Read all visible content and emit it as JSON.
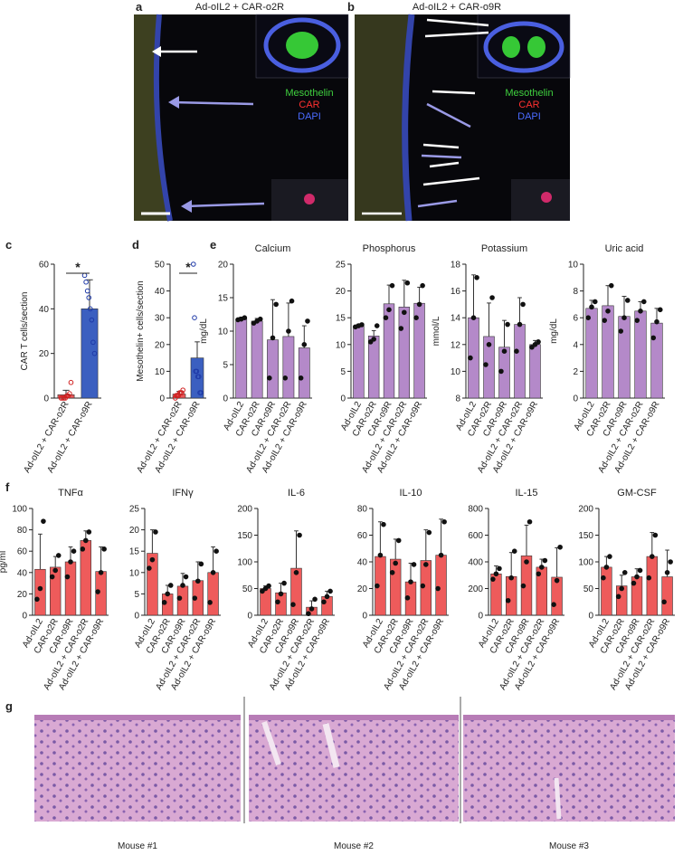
{
  "panel_labels": [
    "a",
    "b",
    "c",
    "d",
    "e",
    "f",
    "g"
  ],
  "images": [
    {
      "title": "Ad-oIL2 + CAR-o2R",
      "legend": [
        {
          "name": "Mesothelin",
          "color": "#3fd13f"
        },
        {
          "name": "CAR",
          "color": "#ff3030"
        },
        {
          "name": "DAPI",
          "color": "#4a6bff"
        }
      ]
    },
    {
      "title": "Ad-oIL2 + CAR-o9R",
      "legend": [
        {
          "name": "Mesothelin",
          "color": "#3fd13f"
        },
        {
          "name": "CAR",
          "color": "#ff3030"
        },
        {
          "name": "DAPI",
          "color": "#4a6bff"
        }
      ]
    }
  ],
  "mouse_labels": [
    "Mouse #1",
    "Mouse #2",
    "Mouse #3"
  ],
  "chart_data": [
    {
      "type": "bar",
      "ylabel": "CAR T cells/section",
      "categories": [
        "Ad-oIL2 + CAR-o2R",
        "Ad-oIL2 + CAR-o9R"
      ],
      "values": [
        1.5,
        40
      ],
      "errors": [
        2,
        13
      ],
      "colors": [
        "#e8585a",
        "#3b5fc0"
      ],
      "point_colors": [
        "#d02020",
        "#1f3aa8"
      ],
      "points": [
        [
          0,
          0,
          0,
          0,
          1,
          1,
          2,
          7
        ],
        [
          55,
          52,
          48,
          45,
          40,
          35,
          25,
          20
        ]
      ],
      "annotation": "*",
      "ylim": [
        0,
        60
      ],
      "yticks": [
        0,
        20,
        40,
        60
      ]
    },
    {
      "type": "bar",
      "ylabel": "Mesothelin+ cells/section",
      "categories": [
        "Ad-oIL2 + CAR-o2R",
        "Ad-oIL2 + CAR-o9R"
      ],
      "values": [
        1.5,
        15
      ],
      "errors": [
        1,
        6
      ],
      "colors": [
        "#e8585a",
        "#3b5fc0"
      ],
      "point_colors": [
        "#d02020",
        "#1f3aa8"
      ],
      "points": [
        [
          0,
          1,
          1,
          1,
          2,
          2,
          2,
          3
        ],
        [
          50,
          30,
          10,
          10,
          8,
          8,
          2,
          2
        ]
      ],
      "annotation": "*",
      "ylim": [
        0,
        50
      ],
      "yticks": [
        0,
        10,
        20,
        30,
        40,
        50
      ]
    },
    {
      "type": "bar",
      "title": "Calcium",
      "ylabel": "mg/dL",
      "color": "#b489c9",
      "categories": [
        "Ad-oIL2",
        "CAR-o2R",
        "CAR-o9R",
        "Ad-oIL2 + CAR-o2R",
        "Ad-oIL2 + CAR-o9R"
      ],
      "values": [
        11.8,
        11.5,
        8.7,
        9.2,
        7.5
      ],
      "errors": [
        0.3,
        0.4,
        6,
        5,
        3.3
      ],
      "points": [
        [
          11.7,
          11.8,
          12
        ],
        [
          11.2,
          11.5,
          11.8
        ],
        [
          3,
          9,
          14
        ],
        [
          3,
          10,
          14.5
        ],
        [
          3,
          8,
          11.5
        ]
      ],
      "ylim": [
        0,
        20
      ],
      "yticks": [
        0,
        5,
        10,
        15,
        20
      ]
    },
    {
      "type": "bar",
      "title": "Phosphorus",
      "color": "#b489c9",
      "categories": [
        "Ad-oIL2",
        "CAR-o2R",
        "CAR-o9R",
        "Ad-oIL2 + CAR-o2R",
        "Ad-oIL2 + CAR-o9R"
      ],
      "values": [
        13.5,
        11.6,
        17.6,
        17,
        17.7
      ],
      "errors": [
        0.3,
        1,
        3.5,
        5,
        3
      ],
      "points": [
        [
          13.3,
          13.5,
          13.7
        ],
        [
          10.5,
          11,
          13.5
        ],
        [
          15,
          16.5,
          21
        ],
        [
          13,
          16,
          21.5
        ],
        [
          15,
          17.5,
          21
        ]
      ],
      "ylim": [
        0,
        25
      ],
      "yticks": [
        0,
        5,
        10,
        15,
        20,
        25
      ]
    },
    {
      "type": "bar",
      "title": "Potassium",
      "ylabel": "mmol/L",
      "color": "#b489c9",
      "categories": [
        "Ad-oIL2",
        "CAR-o2R",
        "CAR-o9R",
        "Ad-oIL2 + CAR-o2R",
        "Ad-oIL2 + CAR-o9R"
      ],
      "values": [
        14,
        12.6,
        11.8,
        13.5,
        12
      ],
      "errors": [
        3.2,
        2.5,
        2,
        2,
        0.3
      ],
      "points": [
        [
          11,
          14,
          17
        ],
        [
          10.5,
          12,
          15.5
        ],
        [
          10,
          11.5,
          13.5
        ],
        [
          11.5,
          13.5,
          15
        ],
        [
          11.8,
          12,
          12.2
        ]
      ],
      "ylim": [
        8,
        18
      ],
      "yticks": [
        8,
        10,
        12,
        14,
        16,
        18
      ]
    },
    {
      "type": "bar",
      "title": "Uric acid",
      "ylabel": "mg/dL",
      "color": "#b489c9",
      "categories": [
        "Ad-oIL2",
        "CAR-o2R",
        "CAR-o9R",
        "Ad-oIL2 + CAR-o2R",
        "Ad-oIL2 + CAR-o9R"
      ],
      "values": [
        6.7,
        6.9,
        6.1,
        6.5,
        5.6
      ],
      "errors": [
        0.6,
        1.5,
        1.5,
        0.7,
        1.1
      ],
      "points": [
        [
          6,
          6.8,
          7.2
        ],
        [
          5.8,
          6.5,
          8.4
        ],
        [
          5,
          6,
          7.3
        ],
        [
          5.8,
          6.5,
          7.2
        ],
        [
          4.5,
          5.7,
          6.6
        ]
      ],
      "ylim": [
        0,
        10
      ],
      "yticks": [
        0,
        2,
        4,
        6,
        8,
        10
      ]
    },
    {
      "type": "bar",
      "title": "TNFα",
      "ylabel": "pg/ml",
      "color": "#ee5b5b",
      "categories": [
        "Ad-oIL2",
        "CAR-o2R",
        "CAR-o9R",
        "Ad-oIL2 + CAR-o2R",
        "Ad-oIL2 + CAR-o9R"
      ],
      "values": [
        43,
        45,
        50,
        70,
        41
      ],
      "errors": [
        33,
        10,
        14,
        9,
        23
      ],
      "points": [
        [
          15,
          25,
          88
        ],
        [
          36,
          42,
          56
        ],
        [
          36,
          50,
          60
        ],
        [
          62,
          70,
          78
        ],
        [
          22,
          40,
          62
        ]
      ],
      "ylim": [
        0,
        100
      ],
      "yticks": [
        0,
        20,
        40,
        60,
        80,
        100
      ]
    },
    {
      "type": "bar",
      "title": "IFNγ",
      "color": "#ee5b5b",
      "categories": [
        "Ad-oIL2",
        "CAR-o2R",
        "CAR-o9R",
        "Ad-oIL2 + CAR-o2R",
        "Ad-oIL2 + CAR-o9R"
      ],
      "values": [
        14.5,
        5,
        6.8,
        8.1,
        10
      ],
      "errors": [
        5.5,
        2,
        3,
        4.4,
        6
      ],
      "points": [
        [
          11,
          13,
          19.5
        ],
        [
          3,
          5,
          7
        ],
        [
          4,
          7,
          9
        ],
        [
          4,
          8,
          12
        ],
        [
          3,
          10,
          15
        ]
      ],
      "ylim": [
        0,
        25
      ],
      "yticks": [
        0,
        5,
        10,
        15,
        20,
        25
      ]
    },
    {
      "type": "bar",
      "title": "IL-6",
      "color": "#ee5b5b",
      "categories": [
        "Ad-oIL2",
        "CAR-o2R",
        "CAR-o9R",
        "Ad-oIL2 + CAR-o2R",
        "Ad-oIL2 + CAR-o9R"
      ],
      "values": [
        50,
        42,
        88,
        15,
        35
      ],
      "errors": [
        5,
        18,
        70,
        12,
        10
      ],
      "points": [
        [
          45,
          50,
          55
        ],
        [
          25,
          40,
          60
        ],
        [
          20,
          80,
          150
        ],
        [
          3,
          12,
          30
        ],
        [
          25,
          35,
          45
        ]
      ],
      "ylim": [
        0,
        200
      ],
      "yticks": [
        0,
        50,
        100,
        150,
        200
      ]
    },
    {
      "type": "bar",
      "title": "IL-10",
      "color": "#ee5b5b",
      "categories": [
        "Ad-oIL2",
        "CAR-o2R",
        "CAR-o9R",
        "Ad-oIL2 + CAR-o2R",
        "Ad-oIL2 + CAR-o9R"
      ],
      "values": [
        44,
        42,
        25,
        41,
        45
      ],
      "errors": [
        26,
        15,
        14,
        23,
        27
      ],
      "points": [
        [
          22,
          45,
          68
        ],
        [
          32,
          39,
          56
        ],
        [
          13,
          25,
          38
        ],
        [
          22,
          38,
          62
        ],
        [
          20,
          45,
          70
        ]
      ],
      "ylim": [
        0,
        80
      ],
      "yticks": [
        0,
        20,
        40,
        60,
        80
      ]
    },
    {
      "type": "bar",
      "title": "IL-15",
      "color": "#ee5b5b",
      "categories": [
        "Ad-oIL2",
        "CAR-o2R",
        "CAR-o9R",
        "Ad-oIL2 + CAR-o2R",
        "Ad-oIL2 + CAR-o9R"
      ],
      "values": [
        310,
        290,
        445,
        360,
        285
      ],
      "errors": [
        60,
        180,
        230,
        60,
        220
      ],
      "points": [
        [
          270,
          310,
          350
        ],
        [
          110,
          280,
          480
        ],
        [
          220,
          400,
          700
        ],
        [
          310,
          360,
          410
        ],
        [
          80,
          260,
          510
        ]
      ],
      "ylim": [
        0,
        800
      ],
      "yticks": [
        0,
        200,
        400,
        600,
        800
      ]
    },
    {
      "type": "bar",
      "title": "GM-CSF",
      "color": "#ee5b5b",
      "categories": [
        "Ad-oIL2",
        "CAR-o2R",
        "CAR-o9R",
        "Ad-oIL2 + CAR-o2R",
        "Ad-oIL2 + CAR-o9R"
      ],
      "values": [
        90,
        55,
        72,
        110,
        72
      ],
      "errors": [
        20,
        20,
        15,
        45,
        50
      ],
      "points": [
        [
          70,
          90,
          110
        ],
        [
          35,
          50,
          80
        ],
        [
          60,
          72,
          84
        ],
        [
          70,
          110,
          150
        ],
        [
          25,
          80,
          100
        ]
      ],
      "ylim": [
        0,
        200
      ],
      "yticks": [
        0,
        50,
        100,
        150,
        200
      ]
    }
  ]
}
